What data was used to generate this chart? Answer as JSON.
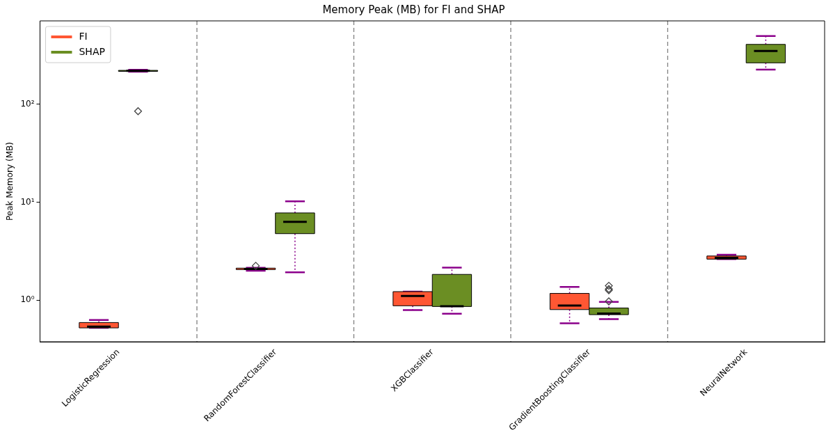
{
  "chart_data": {
    "type": "box",
    "title": "Memory Peak (MB) for FI and SHAP",
    "ylabel": "Peak Memory (MB)",
    "categories": [
      "LogisticRegression",
      "RandomForestClassifier",
      "XGBClassifier",
      "GradientBoostingClassifier",
      "NeuralNetwork"
    ],
    "log": "y",
    "ylim": [
      0.375,
      711
    ],
    "yticks": [
      {
        "value": 1,
        "label": "10⁰"
      },
      {
        "value": 10,
        "label": "10¹"
      },
      {
        "value": 100,
        "label": "10²"
      }
    ],
    "grid": false,
    "legend": "top left",
    "marker": "diamond",
    "series": [
      {
        "name": "FI",
        "color": "#ff5733",
        "boxes": [
          {
            "low": 0.52,
            "q1": 0.52,
            "median": 0.535,
            "q3": 0.59,
            "high": 0.625
          },
          {
            "low": 1.99,
            "q1": 2.05,
            "median": 2.08,
            "q3": 2.12,
            "high": 2.14,
            "outliers": [
              2.24
            ]
          },
          {
            "low": 0.79,
            "q1": 0.875,
            "median": 1.1,
            "q3": 1.22,
            "high": 1.22
          },
          {
            "low": 0.58,
            "q1": 0.8,
            "median": 0.88,
            "q3": 1.17,
            "high": 1.36
          },
          {
            "low": 2.62,
            "q1": 2.62,
            "median": 2.7,
            "q3": 2.82,
            "high": 2.9
          }
        ]
      },
      {
        "name": "SHAP",
        "color": "#6b8e23",
        "boxes": [
          {
            "low": 215,
            "q1": 217,
            "median": 220,
            "q3": 222,
            "high": 225,
            "outliers": [
              85
            ]
          },
          {
            "low": 1.92,
            "q1": 4.77,
            "median": 6.3,
            "q3": 7.77,
            "high": 10.2
          },
          {
            "low": 0.725,
            "q1": 0.86,
            "median": 0.865,
            "q3": 1.83,
            "high": 2.15
          },
          {
            "low": 0.64,
            "q1": 0.71,
            "median": 0.73,
            "q3": 0.83,
            "high": 0.96,
            "outliers": [
              0.97,
              1.26,
              1.3,
              1.4
            ]
          },
          {
            "low": 226,
            "q1": 265,
            "median": 350,
            "q3": 409,
            "high": 499
          }
        ]
      }
    ]
  }
}
